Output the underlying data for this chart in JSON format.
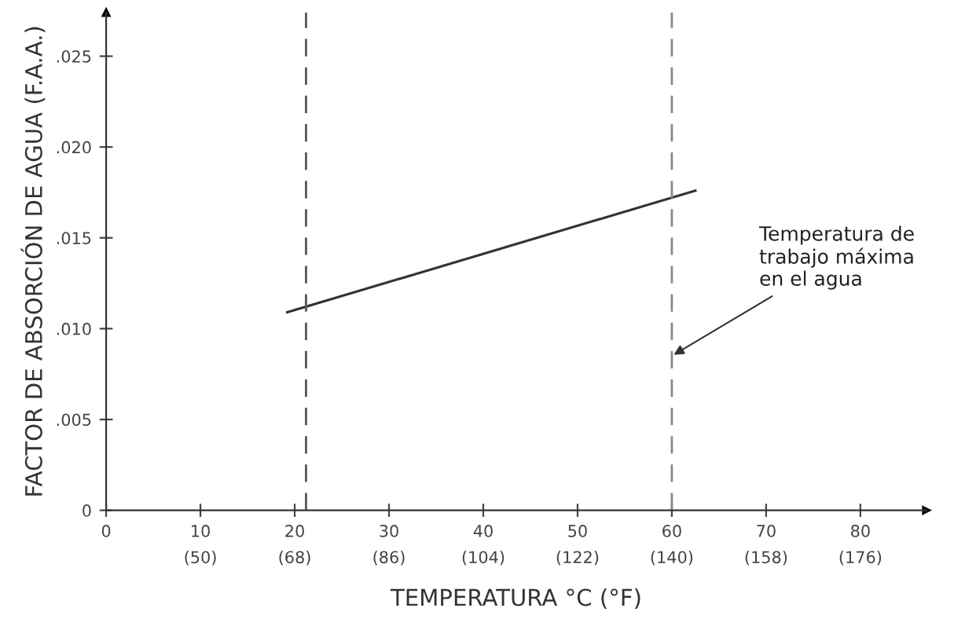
{
  "chart_data": {
    "type": "line",
    "xlabel": "TEMPERATURA °C (°F)",
    "ylabel": "FACTOR DE ABSORCIÓN DE AGUA (F.A.A.)",
    "x": [
      19.2,
      62.5
    ],
    "series": [
      {
        "color": "#333333",
        "values": [
          0.0109,
          0.0176
        ]
      }
    ],
    "xlim": [
      0,
      87
    ],
    "ylim": [
      0,
      0.0274
    ],
    "xticks": [
      0,
      10,
      20,
      30,
      40,
      50,
      60,
      70,
      80
    ],
    "x2lim": [
      32,
      188.6
    ],
    "x2ticks": [
      {
        "value": 50,
        "label": "(50)"
      },
      {
        "value": 68,
        "label": "(68)"
      },
      {
        "value": 86,
        "label": "(86)"
      },
      {
        "value": 104,
        "label": "(104)"
      },
      {
        "value": 122,
        "label": "(122)"
      },
      {
        "value": 140,
        "label": "(140)"
      },
      {
        "value": 158,
        "label": "(158)"
      },
      {
        "value": 176,
        "label": "(176)"
      }
    ],
    "yticks": [
      0,
      {
        "value": 0.005,
        "label": ".005"
      },
      {
        "value": 0.01,
        "label": ".010"
      },
      {
        "value": 0.015,
        "label": ".015"
      },
      {
        "value": 0.02,
        "label": ".020"
      },
      {
        "value": 0.025,
        "label": ".025"
      }
    ],
    "ref_lines": [
      {
        "axis": "x",
        "value": 21.2,
        "color": "#555555",
        "line_style": "dashed"
      },
      {
        "axis": "x",
        "value": 60,
        "color": "#888888",
        "line_style": "dashed"
      }
    ],
    "annotations": [
      {
        "text": "Temperatura de\ntrabajo máxima\nen el agua",
        "x": 60,
        "y": 0.0085
      }
    ],
    "grid": false,
    "legend": false,
    "marker": "none",
    "line_style": "solid"
  }
}
